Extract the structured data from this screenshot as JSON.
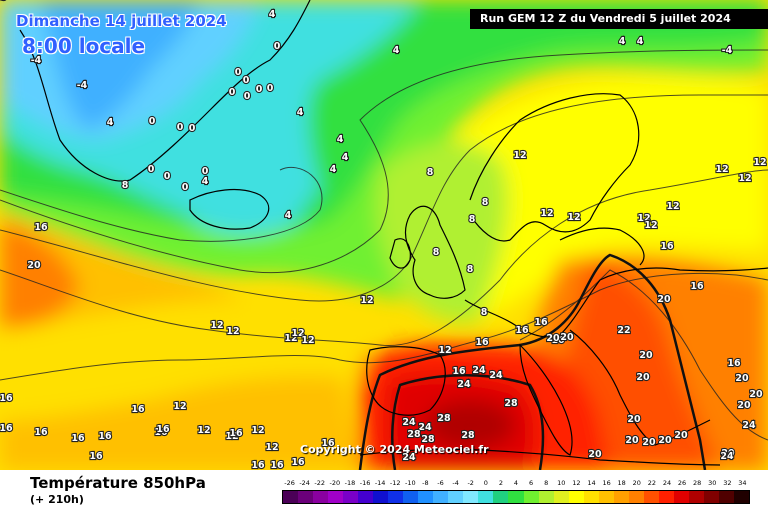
{
  "header": {
    "date": "Dimanche 14 juillet 2024",
    "time": "8:00 locale",
    "run": "Run GEM 12 Z du Vendredi 5 juillet 2024"
  },
  "copyright": "Copyright © 2024 Meteociel.fr",
  "legend": {
    "title": "Température 850hPa",
    "subtitle": "(+ 210h)",
    "scale_values": [
      "-26",
      "-24",
      "-22",
      "-20",
      "-18",
      "-16",
      "-14",
      "-12",
      "-10",
      "-8",
      "-6",
      "-4",
      "-2",
      "0",
      "2",
      "4",
      "6",
      "8",
      "10",
      "12",
      "14",
      "16",
      "18",
      "20",
      "22",
      "24",
      "26",
      "28",
      "30",
      "32",
      "34"
    ],
    "scale_colors": [
      "#4b0057",
      "#6b007a",
      "#8a00a0",
      "#a000c8",
      "#7a00c8",
      "#4400d0",
      "#1010d0",
      "#1030e8",
      "#1060f0",
      "#2090ff",
      "#40b0ff",
      "#60d0ff",
      "#80e8ff",
      "#40e0e0",
      "#20d080",
      "#30e040",
      "#70f030",
      "#b0f030",
      "#e0f020",
      "#ffff00",
      "#ffe000",
      "#ffc000",
      "#ffa000",
      "#ff8000",
      "#ff5000",
      "#ff2000",
      "#e00000",
      "#b00000",
      "#800000",
      "#500000",
      "#200000"
    ]
  },
  "map_labels": [
    {
      "text": "4"
    },
    {
      "text": "0"
    },
    {
      "text": "4"
    },
    {
      "text": "-4"
    },
    {
      "text": "-4"
    },
    {
      "text": "0"
    },
    {
      "text": "0"
    },
    {
      "text": "0"
    },
    {
      "text": "0"
    },
    {
      "text": "0"
    },
    {
      "text": "0"
    },
    {
      "text": "0"
    },
    {
      "text": "0"
    },
    {
      "text": "0"
    },
    {
      "text": "0"
    },
    {
      "text": "0"
    },
    {
      "text": "0"
    },
    {
      "text": "0"
    },
    {
      "text": "4"
    },
    {
      "text": "4"
    },
    {
      "text": "4"
    },
    {
      "text": "4"
    },
    {
      "text": "4"
    },
    {
      "text": "4"
    },
    {
      "text": "4"
    },
    {
      "text": "4"
    },
    {
      "text": "-4"
    },
    {
      "text": "4"
    },
    {
      "text": "8"
    },
    {
      "text": "8"
    },
    {
      "text": "8"
    },
    {
      "text": "8"
    },
    {
      "text": "8"
    },
    {
      "text": "8"
    },
    {
      "text": "8"
    },
    {
      "text": "12"
    },
    {
      "text": "12"
    },
    {
      "text": "12"
    },
    {
      "text": "12"
    },
    {
      "text": "12"
    },
    {
      "text": "12"
    },
    {
      "text": "12"
    },
    {
      "text": "12"
    },
    {
      "text": "12"
    },
    {
      "text": "12"
    },
    {
      "text": "12"
    },
    {
      "text": "12"
    },
    {
      "text": "12"
    },
    {
      "text": "12"
    },
    {
      "text": "12"
    },
    {
      "text": "12"
    },
    {
      "text": "12"
    },
    {
      "text": "12"
    },
    {
      "text": "12"
    },
    {
      "text": "12"
    },
    {
      "text": "12"
    },
    {
      "text": "16"
    },
    {
      "text": "16"
    },
    {
      "text": "16"
    },
    {
      "text": "16"
    },
    {
      "text": "16"
    },
    {
      "text": "16"
    },
    {
      "text": "16"
    },
    {
      "text": "16"
    },
    {
      "text": "16"
    },
    {
      "text": "16"
    },
    {
      "text": "16"
    },
    {
      "text": "16"
    },
    {
      "text": "16"
    },
    {
      "text": "16"
    },
    {
      "text": "16"
    },
    {
      "text": "16"
    },
    {
      "text": "16"
    },
    {
      "text": "16"
    },
    {
      "text": "16"
    },
    {
      "text": "16"
    },
    {
      "text": "16"
    },
    {
      "text": "16"
    },
    {
      "text": "16"
    },
    {
      "text": "20"
    },
    {
      "text": "20"
    },
    {
      "text": "20"
    },
    {
      "text": "20"
    },
    {
      "text": "20"
    },
    {
      "text": "20"
    },
    {
      "text": "20"
    },
    {
      "text": "20"
    },
    {
      "text": "20"
    },
    {
      "text": "20"
    },
    {
      "text": "20"
    },
    {
      "text": "20"
    },
    {
      "text": "20"
    },
    {
      "text": "20"
    },
    {
      "text": "20"
    },
    {
      "text": "20"
    },
    {
      "text": "22"
    },
    {
      "text": "24"
    },
    {
      "text": "24"
    },
    {
      "text": "24"
    },
    {
      "text": "24"
    },
    {
      "text": "24"
    },
    {
      "text": "24"
    },
    {
      "text": "24"
    },
    {
      "text": "24"
    },
    {
      "text": "28"
    },
    {
      "text": "28"
    },
    {
      "text": "28"
    },
    {
      "text": "28"
    },
    {
      "text": "28"
    },
    {
      "text": "28"
    }
  ]
}
